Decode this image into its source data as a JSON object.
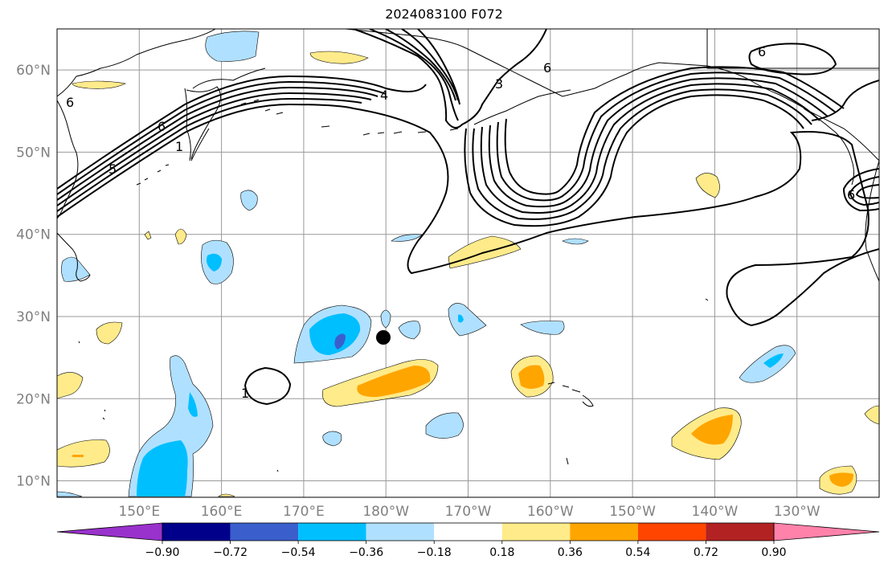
{
  "title": "2024083100 F072",
  "map": {
    "lat_labels": [
      "60°N",
      "50°N",
      "40°N",
      "30°N",
      "20°N",
      "10°N"
    ],
    "lon_labels": [
      "150°E",
      "160°E",
      "170°E",
      "180°W",
      "170°W",
      "160°W",
      "150°W",
      "140°W",
      "130°W"
    ],
    "lat_values": [
      60,
      50,
      40,
      30,
      20,
      10
    ],
    "lon_values": [
      150,
      160,
      170,
      180,
      190,
      200,
      210,
      220,
      230
    ],
    "extent": {
      "lon_min": 140,
      "lon_max": 240,
      "lat_min": 8,
      "lat_max": 65
    },
    "grid": true,
    "contour_labels": [
      "6",
      "1",
      "5",
      "4",
      "3",
      "6",
      "6",
      "1",
      "6",
      "1"
    ],
    "marker": {
      "lon": 180,
      "lat": 27.5
    }
  },
  "colorbar": {
    "ticks": [
      "−0.90",
      "−0.72",
      "−0.54",
      "−0.36",
      "−0.18",
      "0.18",
      "0.36",
      "0.54",
      "0.72",
      "0.90"
    ],
    "colors": [
      "#9932cc",
      "#00008b",
      "#3a5fcd",
      "#00bfff",
      "#b0e0ff",
      "#ffffff",
      "#ffeb8a",
      "#ffa500",
      "#ff4500",
      "#b22222",
      "#ff82ab"
    ]
  }
}
